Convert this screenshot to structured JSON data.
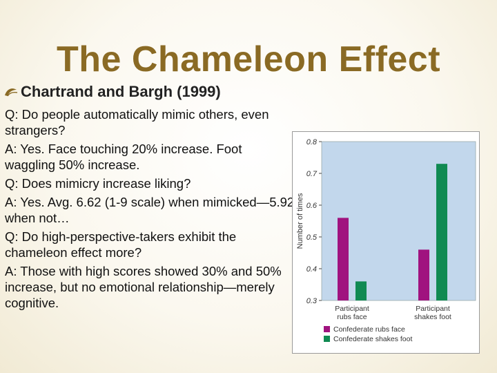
{
  "slide": {
    "title": "The Chameleon Effect",
    "subtitle": "Chartrand and Bargh (1999)",
    "paragraphs": [
      "Q:  Do people automatically mimic others, even strangers?",
      "A:  Yes.  Face touching 20% increase. Foot waggling 50% increase.",
      "Q:  Does mimicry increase liking?",
      "A:  Yes.  Avg. 6.62 (1-9 scale) when mimicked—5.92 when not…",
      "Q:  Do high-perspective-takers exhibit the chameleon effect more?",
      "A:  Those with high scores showed 30% and 50% increase, but no emotional relationship—merely cognitive."
    ]
  },
  "icons": {
    "bullet": "ornament-bullet-icon"
  },
  "colors": {
    "title": "#8a6a24",
    "plot_background": "#c2d7ec",
    "series_face": "#a0137f",
    "series_foot": "#108a52"
  },
  "chart_data": {
    "type": "bar",
    "categories": [
      "Participant\nrubs face",
      "Participant\nshakes foot"
    ],
    "series": [
      {
        "name": "Confederate rubs face",
        "values": [
          0.56,
          0.46
        ]
      },
      {
        "name": "Confederate shakes foot",
        "values": [
          0.36,
          0.73
        ]
      }
    ],
    "ylabel": "Number of times",
    "ylim": [
      0.3,
      0.8
    ],
    "yticks": [
      "0.3",
      "0.4",
      "0.5",
      "0.6",
      "0.7",
      "0.8"
    ],
    "grid": false,
    "legend_position": "bottom"
  }
}
